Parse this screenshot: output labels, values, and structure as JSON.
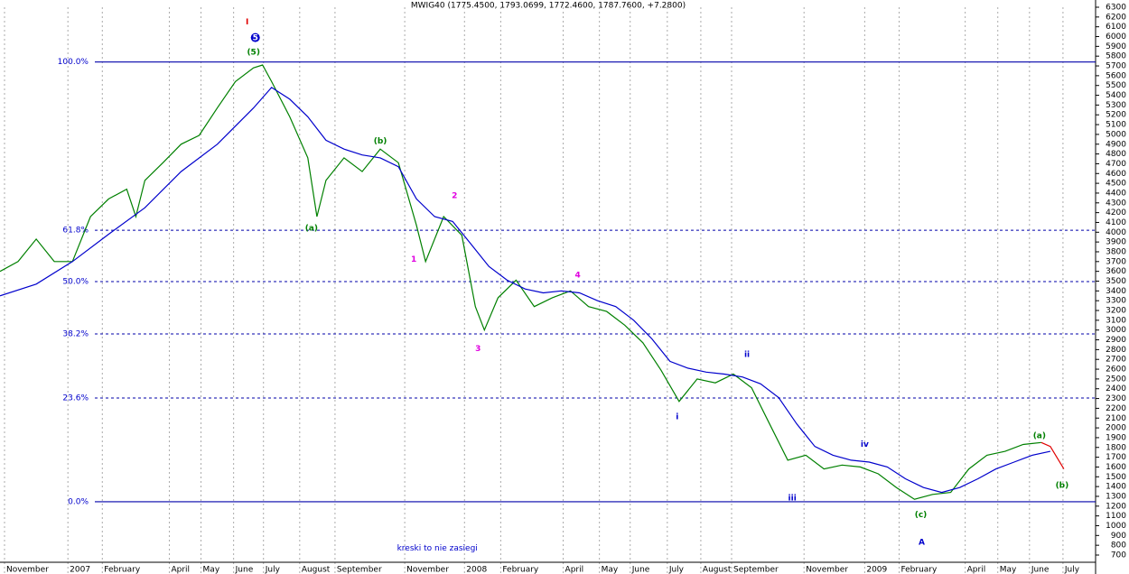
{
  "chart_data": {
    "type": "stock",
    "title": "MWIG40 (1775.4500, 1793.0699, 1772.4600, 1787.7600, +7.2800)",
    "xlim": [
      0,
      121
    ],
    "ylim": [
      700,
      6300
    ],
    "xticks": [
      {
        "value": 0.5,
        "label": "November"
      },
      {
        "value": 7.5,
        "label": "2007"
      },
      {
        "value": 11.3,
        "label": "February"
      },
      {
        "value": 18.7,
        "label": "April"
      },
      {
        "value": 22.2,
        "label": "May"
      },
      {
        "value": 25.8,
        "label": "June"
      },
      {
        "value": 29.1,
        "label": "July"
      },
      {
        "value": 33.1,
        "label": "August"
      },
      {
        "value": 37,
        "label": "September"
      },
      {
        "value": 44.7,
        "label": "November"
      },
      {
        "value": 51.3,
        "label": "2008"
      },
      {
        "value": 55.3,
        "label": "February"
      },
      {
        "value": 62.2,
        "label": "April"
      },
      {
        "value": 66.2,
        "label": "May"
      },
      {
        "value": 69.6,
        "label": "June"
      },
      {
        "value": 73.7,
        "label": "July"
      },
      {
        "value": 77.4,
        "label": "August"
      },
      {
        "value": 80.8,
        "label": "September"
      },
      {
        "value": 88.8,
        "label": "November"
      },
      {
        "value": 95.5,
        "label": "2009"
      },
      {
        "value": 99.3,
        "label": "February"
      },
      {
        "value": 106.6,
        "label": "April"
      },
      {
        "value": 110.2,
        "label": "May"
      },
      {
        "value": 113.7,
        "label": "June"
      },
      {
        "value": 117.4,
        "label": "July"
      }
    ],
    "yticks": [
      700,
      800,
      900,
      1000,
      1100,
      1200,
      1300,
      1400,
      1500,
      1600,
      1700,
      1800,
      1900,
      2000,
      2100,
      2200,
      2300,
      2400,
      2500,
      2600,
      2700,
      2800,
      2900,
      3000,
      3100,
      3200,
      3300,
      3400,
      3500,
      3600,
      3700,
      3800,
      3900,
      4000,
      4100,
      4200,
      4300,
      4400,
      4500,
      4600,
      4700,
      4800,
      4900,
      5000,
      5100,
      5200,
      5300,
      5400,
      5500,
      5600,
      5700,
      5800,
      5900,
      6000,
      6100,
      6200,
      6300
    ],
    "series": [
      {
        "color": "#008000",
        "x": [
          0,
          2,
          4,
          6,
          8,
          10,
          12,
          14,
          15,
          16,
          18,
          20,
          22,
          24,
          26,
          28,
          29,
          30,
          32,
          34,
          35,
          36,
          38,
          40,
          42,
          44,
          46,
          47,
          49,
          51,
          52.5,
          53.5,
          55,
          57,
          59,
          61,
          63,
          65,
          67,
          69,
          71,
          73,
          75,
          77,
          79,
          81,
          83,
          85,
          87,
          89,
          91,
          93,
          95,
          97,
          99,
          101,
          103,
          105,
          107,
          109,
          111,
          113,
          115
        ],
        "values": [
          3600,
          3700,
          3930,
          3700,
          3700,
          4160,
          4340,
          4440,
          4160,
          4530,
          4710,
          4900,
          4990,
          5270,
          5540,
          5680,
          5710,
          5540,
          5180,
          4760,
          4160,
          4530,
          4760,
          4620,
          4850,
          4710,
          4070,
          3700,
          4160,
          3970,
          3240,
          3000,
          3330,
          3510,
          3240,
          3330,
          3400,
          3240,
          3190,
          3050,
          2870,
          2590,
          2270,
          2500,
          2460,
          2550,
          2410,
          2040,
          1670,
          1720,
          1580,
          1620,
          1600,
          1530,
          1390,
          1270,
          1320,
          1340,
          1580,
          1720,
          1760,
          1830,
          1850
        ]
      },
      {
        "color": "#e00000",
        "x": [
          115,
          116,
          117.5
        ],
        "values": [
          1850,
          1810,
          1580
        ]
      },
      {
        "color": "#0000cc",
        "x": [
          0,
          4,
          8,
          12,
          16,
          20,
          24,
          28,
          30,
          32,
          34,
          36,
          38,
          40,
          42,
          44,
          46,
          48,
          50,
          52,
          54,
          56,
          58,
          60,
          62,
          64,
          66,
          68,
          70,
          72,
          74,
          76,
          78,
          80,
          82,
          84,
          86,
          88,
          90,
          92,
          94,
          96,
          98,
          100,
          102,
          104,
          106,
          108,
          110,
          112,
          114,
          116
        ],
        "values": [
          3350,
          3470,
          3700,
          3980,
          4250,
          4620,
          4900,
          5270,
          5480,
          5360,
          5180,
          4940,
          4850,
          4790,
          4760,
          4670,
          4340,
          4160,
          4110,
          3880,
          3650,
          3510,
          3420,
          3380,
          3400,
          3380,
          3300,
          3240,
          3100,
          2910,
          2680,
          2610,
          2570,
          2550,
          2520,
          2450,
          2310,
          2040,
          1810,
          1720,
          1670,
          1650,
          1600,
          1480,
          1390,
          1340,
          1390,
          1480,
          1580,
          1650,
          1720,
          1760
        ]
      }
    ],
    "fib_levels": [
      {
        "label": "100.0%",
        "price": 5740
      },
      {
        "label": "61.8%",
        "price": 4020
      },
      {
        "label": "50.0%",
        "price": 3495
      },
      {
        "label": "38.2%",
        "price": 2960
      },
      {
        "label": "23.6%",
        "price": 2305
      },
      {
        "label": "0.0%",
        "price": 1245
      }
    ],
    "annotations": [
      {
        "text": "I",
        "x": 27.3,
        "price": 6150,
        "color": "#e00000"
      },
      {
        "text": "5",
        "x": 28.2,
        "price": 5990,
        "color": "#0000cc"
      },
      {
        "text": "(5)",
        "x": 28,
        "price": 5840,
        "color": "#008000"
      },
      {
        "text": "(a)",
        "x": 34.4,
        "price": 4040,
        "color": "#008000"
      },
      {
        "text": "(b)",
        "x": 42,
        "price": 4930,
        "color": "#008000"
      },
      {
        "text": "1",
        "x": 45.7,
        "price": 3720,
        "color": "#e000e0"
      },
      {
        "text": "2",
        "x": 50.2,
        "price": 4370,
        "color": "#e000e0"
      },
      {
        "text": "3",
        "x": 52.8,
        "price": 2810,
        "color": "#e000e0"
      },
      {
        "text": "4",
        "x": 63.8,
        "price": 3560,
        "color": "#e000e0"
      },
      {
        "text": "i",
        "x": 74.8,
        "price": 2110,
        "color": "#0000cc"
      },
      {
        "text": "ii",
        "x": 82.5,
        "price": 2750,
        "color": "#0000cc"
      },
      {
        "text": "iii",
        "x": 87.5,
        "price": 1280,
        "color": "#0000cc"
      },
      {
        "text": "iv",
        "x": 95.5,
        "price": 1830,
        "color": "#0000cc"
      },
      {
        "text": "(c)",
        "x": 101.7,
        "price": 1110,
        "color": "#008000"
      },
      {
        "text": "A",
        "x": 101.8,
        "price": 830,
        "color": "#0000cc"
      },
      {
        "text": "(a)",
        "x": 114.8,
        "price": 1920,
        "color": "#008000"
      },
      {
        "text": "(b)",
        "x": 117.3,
        "price": 1410,
        "color": "#008000"
      },
      {
        "text": "kreski to nie zasiegi",
        "x": 48.3,
        "price": 770,
        "color": "#0000cc"
      }
    ]
  }
}
